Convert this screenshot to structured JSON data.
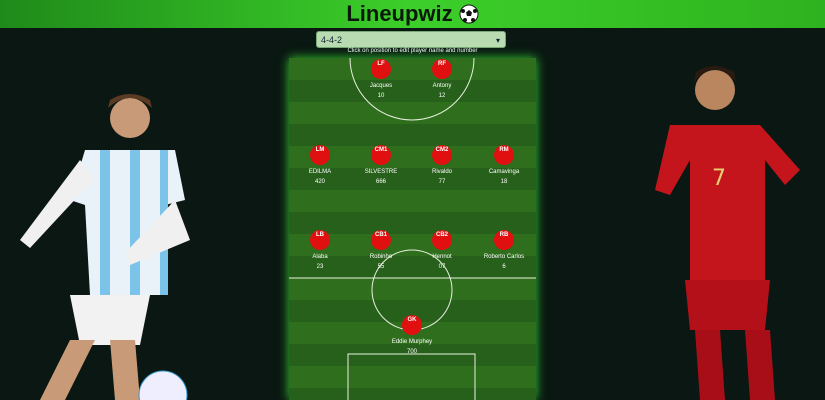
{
  "header": {
    "title": "Lineupwiz"
  },
  "formation": {
    "selected": "4-4-2"
  },
  "instruction": "Click on position to edit player name and number",
  "players": [
    {
      "position": "LF",
      "name": "Jacques",
      "number": "10"
    },
    {
      "position": "RF",
      "name": "Antony",
      "number": "12"
    },
    {
      "position": "LM",
      "name": "EDILMA",
      "number": "420"
    },
    {
      "position": "CM1",
      "name": "SILVESTRE",
      "number": "666"
    },
    {
      "position": "CM2",
      "name": "Rivaldo",
      "number": "77"
    },
    {
      "position": "RM",
      "name": "Camavinga",
      "number": "18"
    },
    {
      "position": "LB",
      "name": "Alaba",
      "number": "23"
    },
    {
      "position": "CB1",
      "name": "Robinho",
      "number": "55"
    },
    {
      "position": "CB2",
      "name": "Hennot",
      "number": "07"
    },
    {
      "position": "RB",
      "name": "Roberto Carlos",
      "number": "6"
    },
    {
      "position": "GK",
      "name": "Eddie Murphey",
      "number": "700"
    }
  ]
}
